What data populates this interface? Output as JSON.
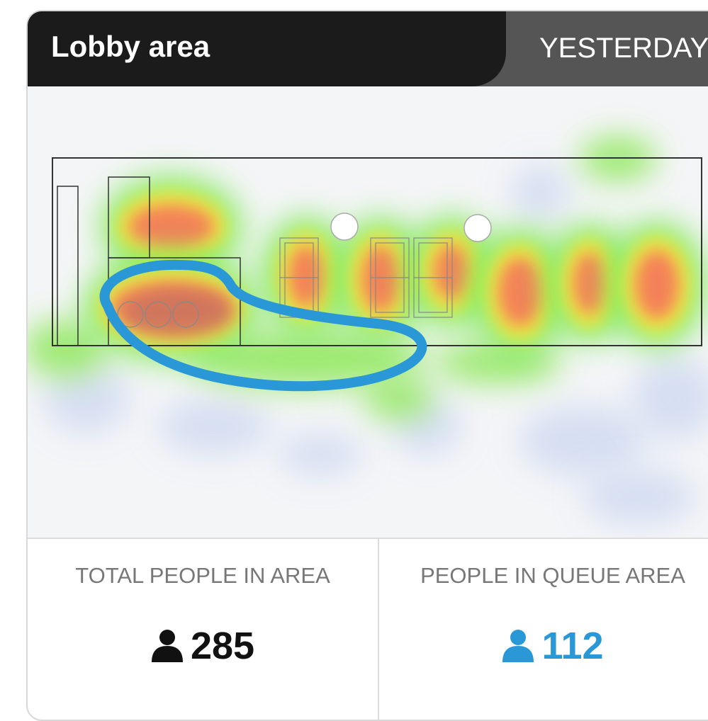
{
  "header": {
    "title": "Lobby area",
    "period": "YESTERDAY"
  },
  "stats": [
    {
      "label": "TOTAL PEOPLE IN AREA",
      "value": "285"
    },
    {
      "label": "PEOPLE IN QUEUE AREA",
      "value": "112"
    }
  ]
}
